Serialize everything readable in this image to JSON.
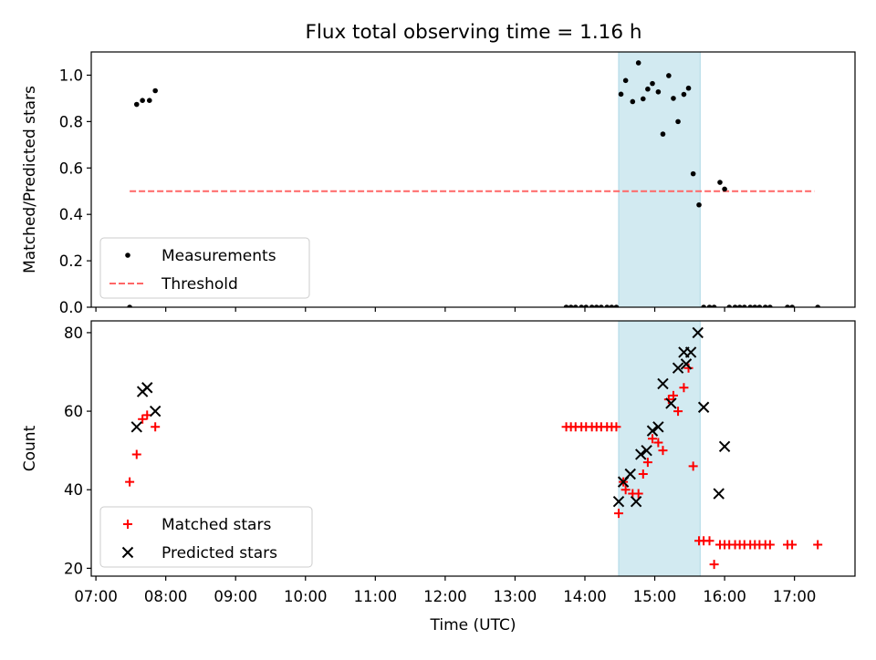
{
  "title": "Flux total observing time = 1.16 h",
  "colors": {
    "shade": "#add8e6",
    "measurements": "#000000",
    "threshold": "#ff6666",
    "matched": "#ff0000",
    "predicted": "#000000"
  },
  "chart_data": [
    {
      "type": "scatter",
      "ylabel": "Matched/Predicted stars",
      "ylim": [
        0,
        1.1
      ],
      "yticks": [
        0.0,
        0.2,
        0.4,
        0.6,
        0.8,
        1.0
      ],
      "ytick_labels": [
        "0.0",
        "0.2",
        "0.4",
        "0.6",
        "0.8",
        "1.0"
      ],
      "xlim": [
        "06:56",
        "17:52"
      ],
      "shaded_span": [
        "14:29",
        "15:39"
      ],
      "legend": {
        "placement": "lower-left",
        "entries": [
          "Measurements",
          "Threshold"
        ]
      },
      "threshold": {
        "name": "Threshold",
        "value": 0.5,
        "x": [
          "07:29",
          "17:17"
        ]
      },
      "series": [
        {
          "name": "Measurements",
          "marker": "dot",
          "x": [
            "07:29",
            "07:35",
            "07:40",
            "07:46",
            "07:51",
            "13:44",
            "13:48",
            "13:52",
            "13:57",
            "14:01",
            "14:06",
            "14:10",
            "14:14",
            "14:19",
            "14:23",
            "14:27",
            "14:31",
            "14:35",
            "14:41",
            "14:46",
            "14:50",
            "14:54",
            "14:58",
            "15:03",
            "15:07",
            "15:12",
            "15:16",
            "15:20",
            "15:25",
            "15:29",
            "15:33",
            "15:38",
            "15:42",
            "15:47",
            "15:51",
            "15:56",
            "16:00",
            "16:04",
            "16:09",
            "16:13",
            "16:17",
            "16:22",
            "16:26",
            "16:30",
            "16:35",
            "16:39",
            "16:54",
            "16:58",
            "17:20"
          ],
          "y": [
            0.0,
            0.874,
            0.891,
            0.891,
            0.933,
            0.0,
            0.0,
            0.0,
            0.0,
            0.0,
            0.0,
            0.0,
            0.0,
            0.0,
            0.0,
            0.0,
            0.918,
            0.977,
            0.886,
            1.053,
            0.898,
            0.94,
            0.964,
            0.928,
            0.746,
            0.998,
            0.9,
            0.8,
            0.917,
            0.944,
            0.575,
            0.441,
            0.0,
            0.0,
            0.0,
            0.538,
            0.509,
            0.0,
            0.0,
            0.0,
            0.0,
            0.0,
            0.0,
            0.0,
            0.0,
            0.0,
            0.0,
            0.0,
            0.0
          ]
        }
      ]
    },
    {
      "type": "scatter",
      "xlabel": "Time (UTC)",
      "ylabel": "Count",
      "ylim": [
        18,
        83
      ],
      "yticks": [
        20,
        40,
        60,
        80
      ],
      "ytick_labels": [
        "20",
        "40",
        "60",
        "80"
      ],
      "xlim": [
        "06:56",
        "17:52"
      ],
      "xticks": [
        "07:00",
        "08:00",
        "09:00",
        "10:00",
        "11:00",
        "12:00",
        "13:00",
        "14:00",
        "15:00",
        "16:00",
        "17:00"
      ],
      "shaded_span": [
        "14:29",
        "15:39"
      ],
      "legend": {
        "placement": "lower-left",
        "entries": [
          "Matched stars",
          "Predicted stars"
        ]
      },
      "series": [
        {
          "name": "Matched stars",
          "marker": "plus",
          "x": [
            "07:29",
            "07:35",
            "07:40",
            "07:44",
            "07:51",
            "13:44",
            "13:48",
            "13:52",
            "13:57",
            "14:01",
            "14:06",
            "14:10",
            "14:14",
            "14:19",
            "14:23",
            "14:27",
            "14:29",
            "14:35",
            "14:41",
            "14:46",
            "14:50",
            "14:54",
            "14:58",
            "15:03",
            "15:07",
            "15:12",
            "15:16",
            "15:20",
            "15:25",
            "15:29",
            "15:33",
            "15:38",
            "15:42",
            "15:47",
            "15:51",
            "15:56",
            "16:00",
            "16:04",
            "16:09",
            "16:13",
            "16:17",
            "16:22",
            "16:26",
            "16:30",
            "16:35",
            "16:39",
            "16:54",
            "16:58",
            "17:20"
          ],
          "y": [
            42,
            49,
            58,
            59,
            56,
            56,
            56,
            56,
            56,
            56,
            56,
            56,
            56,
            56,
            56,
            56,
            34,
            40,
            39,
            39,
            44,
            47,
            53,
            52,
            50,
            63,
            64,
            60,
            66,
            71,
            46,
            27,
            27,
            27,
            21,
            26,
            26,
            26,
            26,
            26,
            26,
            26,
            26,
            26,
            26,
            26,
            26,
            26,
            26
          ],
          "extra": {
            "x": [
              "14:33"
            ],
            "y": [
              42
            ]
          }
        },
        {
          "name": "Predicted stars",
          "marker": "x",
          "x": [
            "07:35",
            "07:40",
            "07:44",
            "07:51",
            "14:29",
            "14:33",
            "14:39",
            "14:44",
            "14:48",
            "14:53",
            "14:58",
            "15:03",
            "15:07",
            "15:14",
            "15:20",
            "15:25",
            "15:27",
            "15:31",
            "15:37",
            "15:42",
            "15:55",
            "16:00"
          ],
          "y": [
            56,
            65,
            66,
            60,
            37,
            42,
            44,
            37,
            49,
            50,
            55,
            56,
            67,
            62,
            71,
            75,
            72,
            75,
            80,
            61,
            39,
            51
          ]
        }
      ]
    }
  ]
}
